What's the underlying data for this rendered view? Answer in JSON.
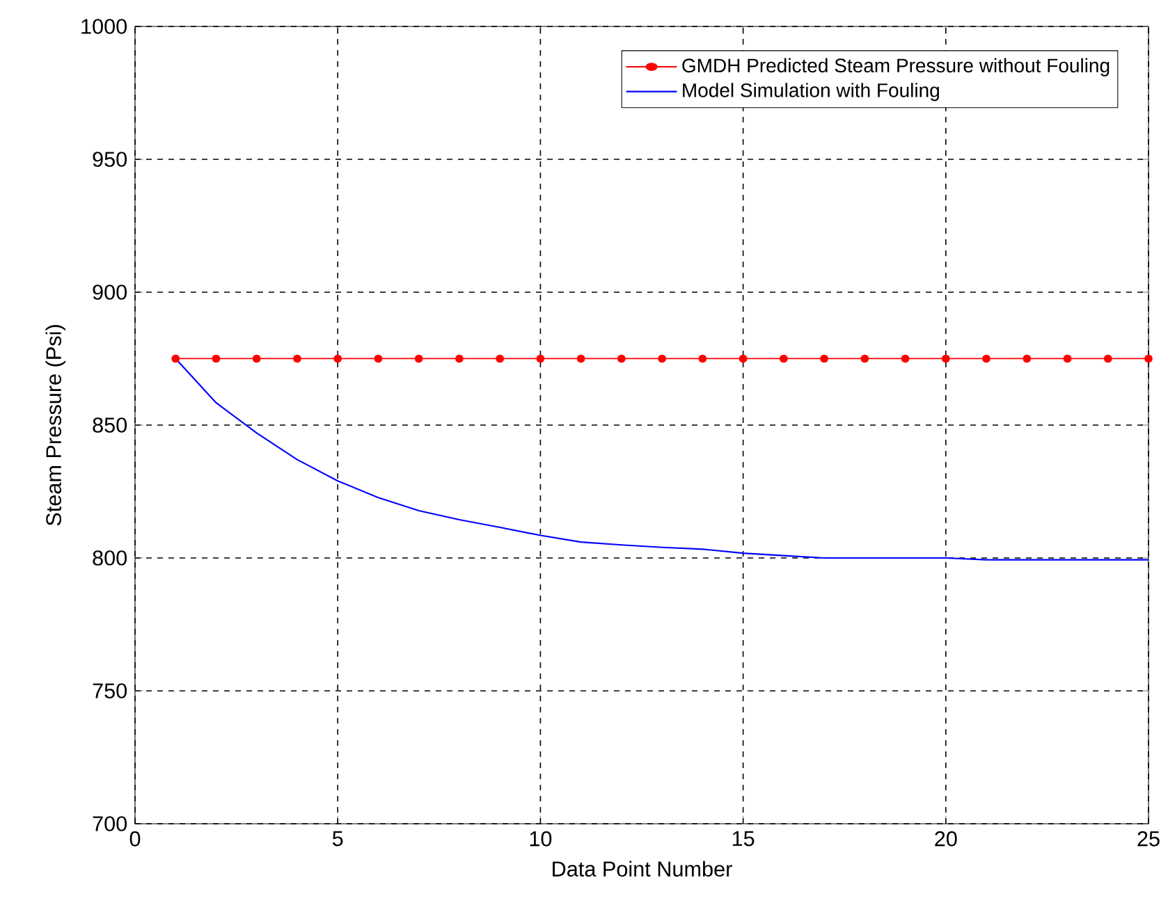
{
  "chart_data": {
    "type": "line",
    "xlabel": "Data Point Number",
    "ylabel": "Steam Pressure (Psi)",
    "xlim": [
      0,
      25
    ],
    "ylim": [
      700,
      1000
    ],
    "xticks": [
      0,
      5,
      10,
      15,
      20,
      25
    ],
    "yticks": [
      700,
      750,
      800,
      850,
      900,
      950,
      1000
    ],
    "grid": true,
    "legend": "top right",
    "x": [
      1,
      2,
      3,
      4,
      5,
      6,
      7,
      8,
      9,
      10,
      11,
      12,
      13,
      14,
      15,
      16,
      17,
      18,
      19,
      20,
      21,
      22,
      23,
      24,
      25
    ],
    "series": [
      {
        "name": "GMDH Predicted Steam Pressure without Fouling",
        "color": "#ff0000",
        "marker": "circle",
        "values": [
          875,
          875,
          875,
          875,
          875,
          875,
          875,
          875,
          875,
          875,
          875,
          875,
          875,
          875,
          875,
          875,
          875,
          875,
          875,
          875,
          875,
          875,
          875,
          875,
          875
        ]
      },
      {
        "name": "Model Simulation with Fouling",
        "color": "#0000ff",
        "marker": "none",
        "values": [
          875,
          858.4,
          847,
          837,
          829,
          822.7,
          817.8,
          814.4,
          811.5,
          808.5,
          806,
          804.9,
          804,
          803.3,
          801.8,
          800.9,
          800,
          800,
          800,
          800,
          799.3,
          799.3,
          799.3,
          799.3,
          799.3
        ]
      }
    ]
  }
}
